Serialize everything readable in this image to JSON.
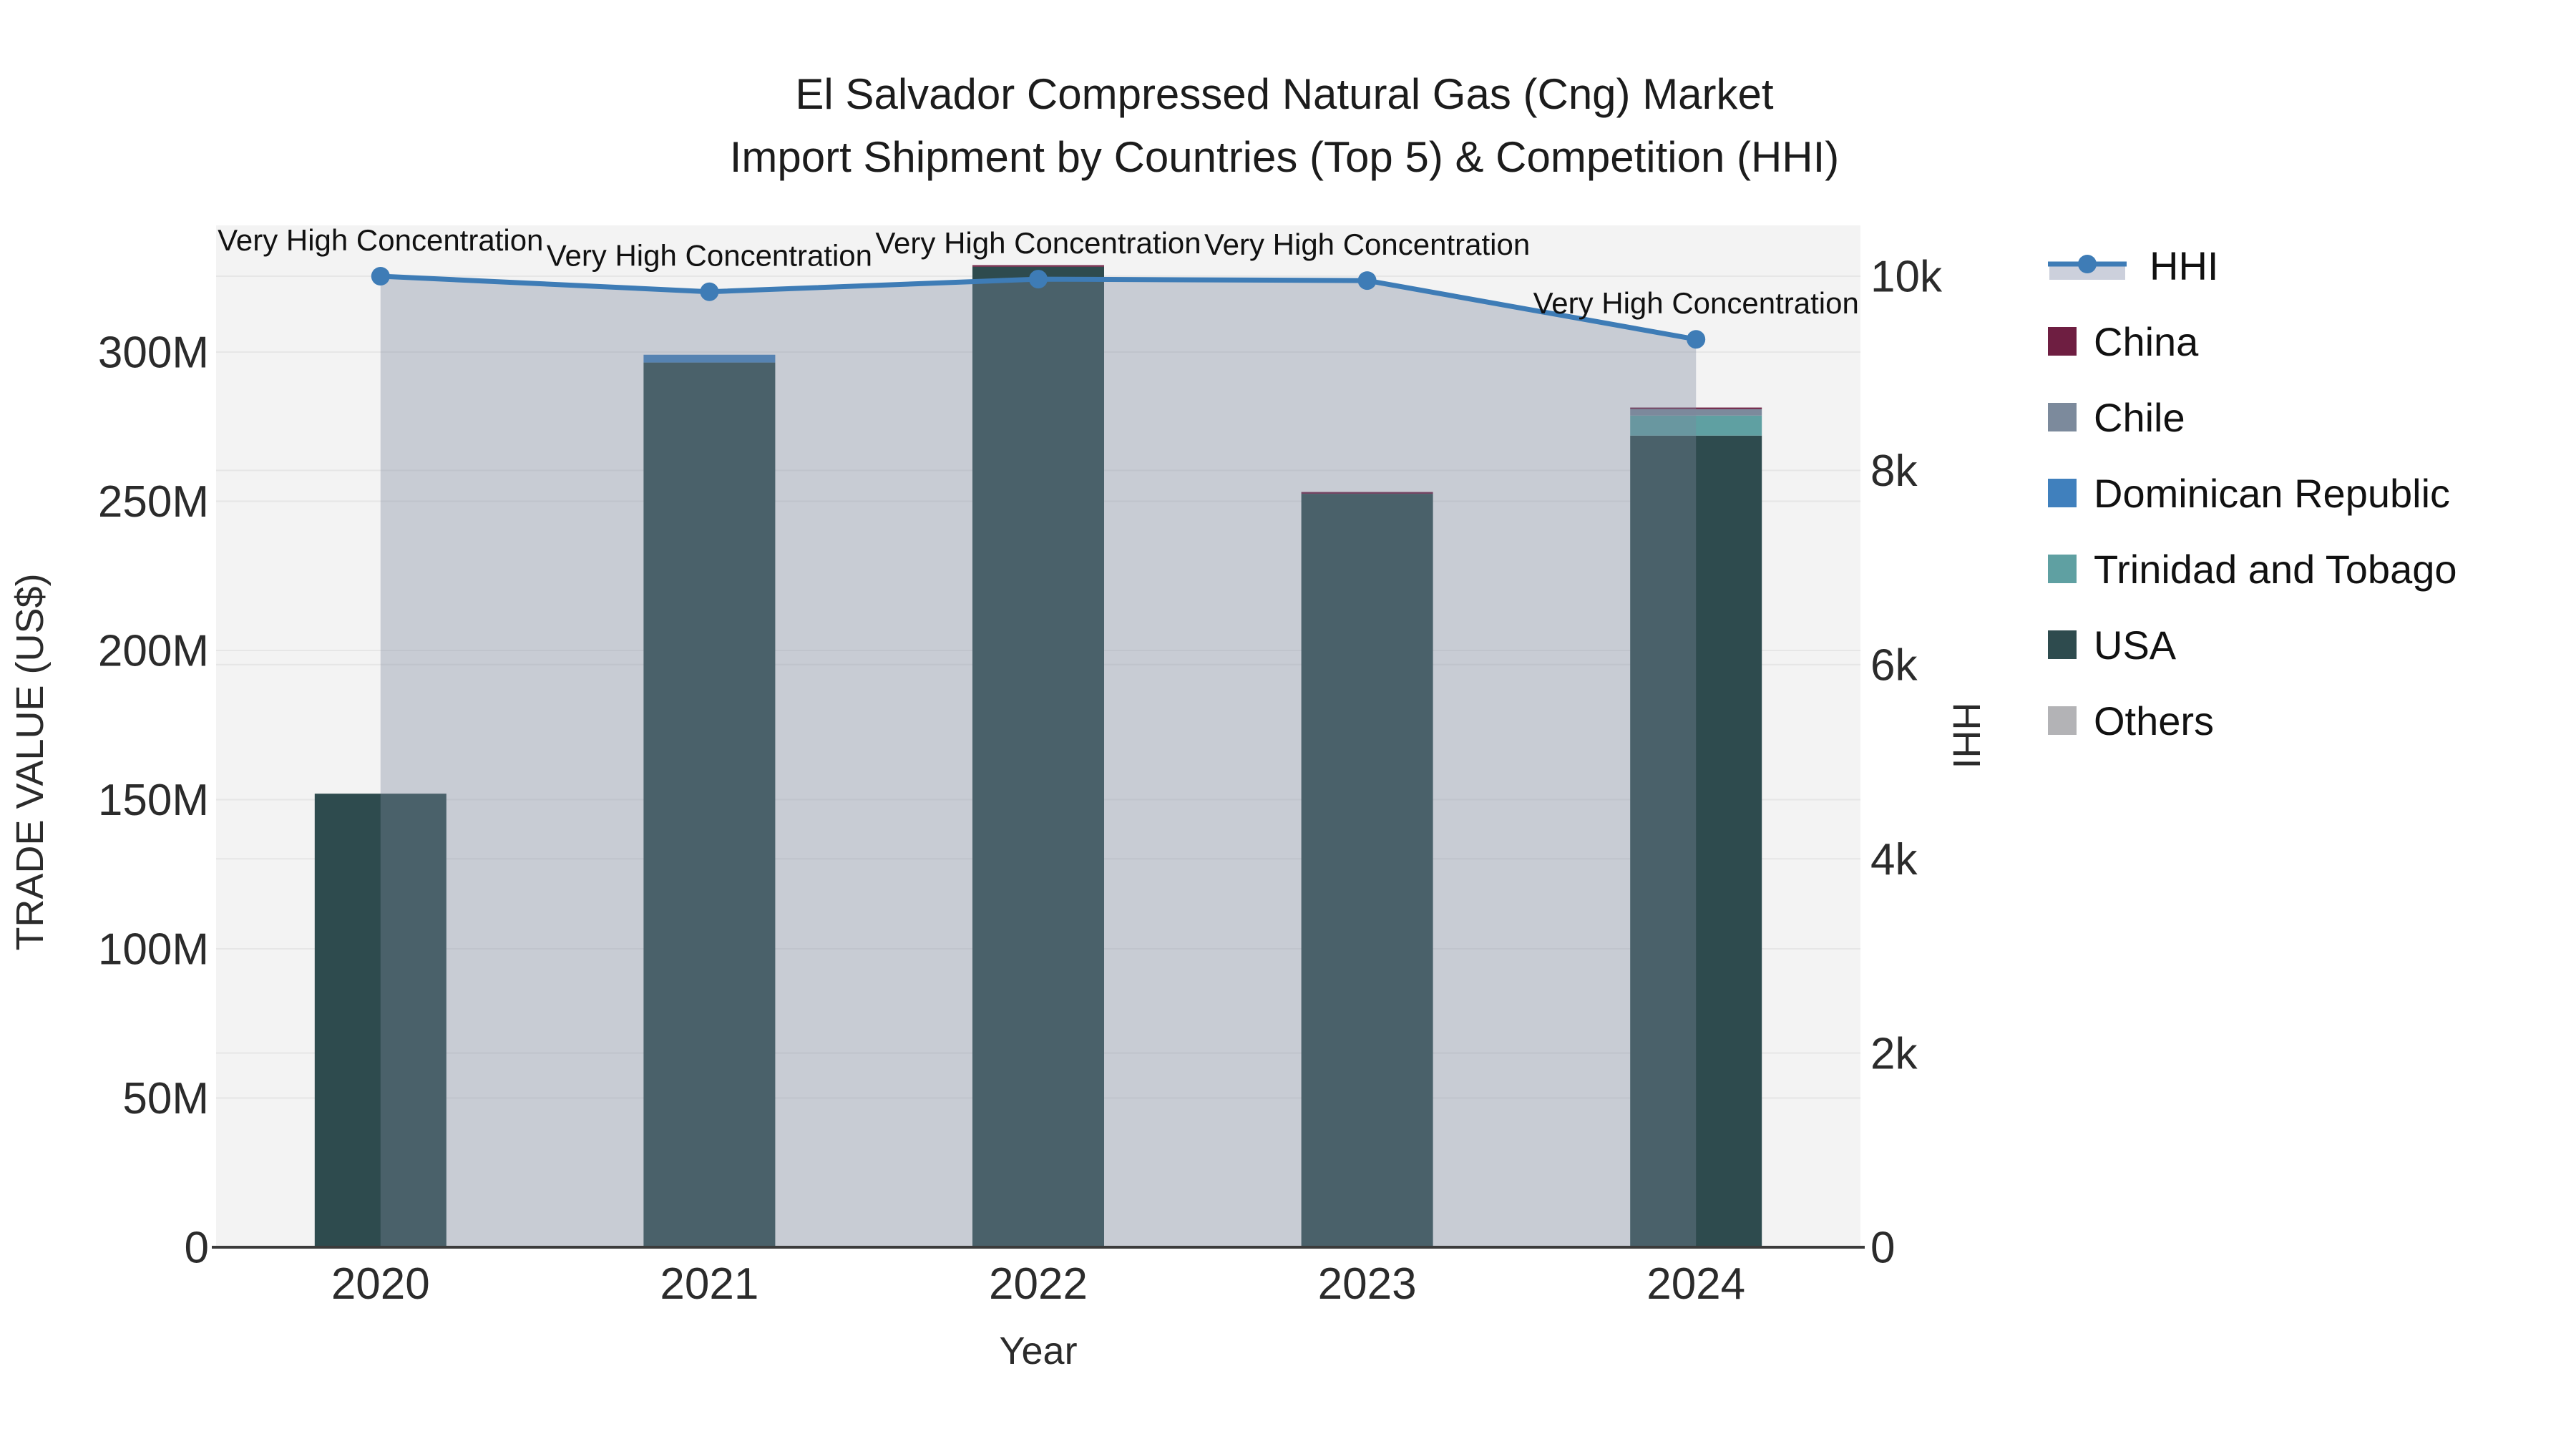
{
  "title": {
    "line1": "El Salvador Compressed Natural Gas (Cng) Market",
    "line2": "Import Shipment by Countries (Top 5) & Competition (HHI)"
  },
  "chart_data": {
    "type": "bar",
    "subtype": "stacked bars (trade value, left axis) + HHI line with area fill (right axis)",
    "categories": [
      "2020",
      "2021",
      "2022",
      "2023",
      "2024"
    ],
    "unit": "million US$",
    "series": [
      {
        "name": "USA",
        "color": "#2E4B4E",
        "values": [
          152,
          296.5,
          328.6,
          252.5,
          272
        ]
      },
      {
        "name": "Trinidad and Tobago",
        "color": "#5FA0A2",
        "values": [
          0,
          0,
          0,
          0,
          6.7
        ]
      },
      {
        "name": "Dominican Republic",
        "color": "#4080BD",
        "values": [
          0,
          2.6,
          0,
          0,
          0
        ]
      },
      {
        "name": "Chile",
        "color": "#7C8A9C",
        "values": [
          0,
          0,
          0,
          0,
          2.2
        ]
      },
      {
        "name": "China",
        "color": "#6E1E41",
        "values": [
          0,
          0,
          0.5,
          0.6,
          0.5
        ]
      },
      {
        "name": "Others",
        "color": "#B3B3B6",
        "values": [
          0,
          0,
          0,
          0,
          0
        ]
      }
    ],
    "line_series": {
      "name": "HHI",
      "color": "#3E7CB6",
      "area_fill_color": "rgba(124,135,158,0.36)",
      "legend_fill_swatch": "#CCD0DC",
      "values": [
        10000,
        9840,
        9970,
        9955,
        9350
      ]
    },
    "annotation_text": "Very High Concentration",
    "xlabel": "Year",
    "ylabel_left": "TRADE VALUE (US$)",
    "ylabel_right": "HHI",
    "axes": {
      "left": {
        "ticks": [
          {
            "label": "0",
            "value": 0
          },
          {
            "label": "50M",
            "value": 50
          },
          {
            "label": "100M",
            "value": 100
          },
          {
            "label": "150M",
            "value": 150
          },
          {
            "label": "200M",
            "value": 200
          },
          {
            "label": "250M",
            "value": 250
          },
          {
            "label": "300M",
            "value": 300
          }
        ],
        "range": [
          0,
          342
        ]
      },
      "right": {
        "ticks": [
          {
            "label": "0",
            "value": 0
          },
          {
            "label": "2k",
            "value": 2000
          },
          {
            "label": "4k",
            "value": 4000
          },
          {
            "label": "6k",
            "value": 6000
          },
          {
            "label": "8k",
            "value": 8000
          },
          {
            "label": "10k",
            "value": 10000
          }
        ],
        "range": [
          0,
          10520
        ]
      }
    },
    "legend_position": "right",
    "grid": true,
    "plot_bg": "#F3F3F3",
    "grid_color": "#E6E6E6",
    "axisline_color": "#3B3B3B",
    "legend": [
      {
        "label": "HHI",
        "swatch": "line",
        "color": "#3E7CB6"
      },
      {
        "label": "China",
        "swatch": "square",
        "color": "#6E1E41"
      },
      {
        "label": "Chile",
        "swatch": "square",
        "color": "#7C8A9C"
      },
      {
        "label": "Dominican Republic",
        "swatch": "square",
        "color": "#4080BD"
      },
      {
        "label": "Trinidad and Tobago",
        "swatch": "square",
        "color": "#5FA0A2"
      },
      {
        "label": "USA",
        "swatch": "square",
        "color": "#2E4B4E"
      },
      {
        "label": "Others",
        "swatch": "square",
        "color": "#B3B3B6"
      }
    ]
  }
}
